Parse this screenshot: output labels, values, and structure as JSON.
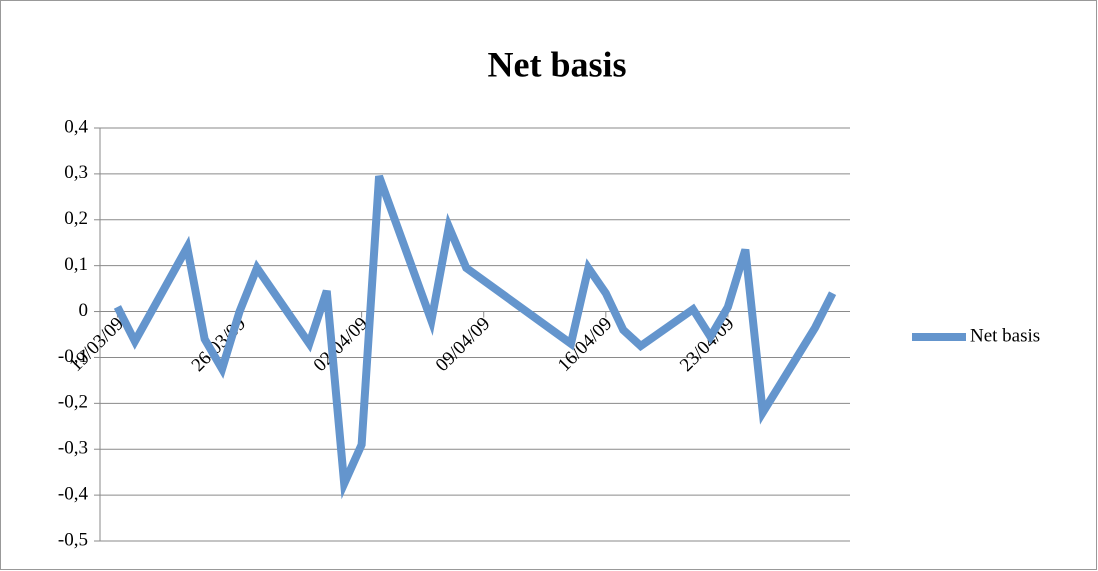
{
  "chart_data": {
    "type": "line",
    "title": "Net basis",
    "x": [
      "19/03/09",
      "20/03/09",
      "23/03/09",
      "24/03/09",
      "25/03/09",
      "26/03/09",
      "27/03/09",
      "30/03/09",
      "31/03/09",
      "01/04/09",
      "02/04/09",
      "03/04/09",
      "06/04/09",
      "07/04/09",
      "08/04/09",
      "14/04/09",
      "15/04/09",
      "16/04/09",
      "17/04/09",
      "18/04/09",
      "21/04/09",
      "22/04/09",
      "23/04/09",
      "24/04/09",
      "25/04/09",
      "28/04/09",
      "29/04/09"
    ],
    "series": [
      {
        "name": "Net basis",
        "color": "#6495cd",
        "values": [
          0.01,
          -0.065,
          0.14,
          -0.06,
          -0.125,
          0.0,
          0.095,
          -0.07,
          0.045,
          -0.375,
          -0.29,
          0.295,
          -0.02,
          0.185,
          0.095,
          -0.07,
          0.095,
          0.04,
          -0.04,
          -0.075,
          0.005,
          -0.055,
          0.01,
          0.135,
          -0.22,
          -0.035,
          0.04
        ]
      }
    ],
    "xlim": [
      "18/03/09",
      "30/04/09"
    ],
    "xticks": [
      "19/03/09",
      "26/03/09",
      "02/04/09",
      "09/04/09",
      "16/04/09",
      "23/04/09"
    ],
    "ylim": [
      -0.5,
      0.4
    ],
    "yticks": [
      {
        "value": 0.4,
        "label": "0,4"
      },
      {
        "value": 0.3,
        "label": "0,3"
      },
      {
        "value": 0.2,
        "label": "0,2"
      },
      {
        "value": 0.1,
        "label": "0,1"
      },
      0,
      {
        "value": -0.1,
        "label": "-0,1"
      },
      {
        "value": -0.2,
        "label": "-0,2"
      },
      {
        "value": -0.3,
        "label": "-0,3"
      },
      {
        "value": -0.4,
        "label": "-0,4"
      },
      {
        "value": -0.5,
        "label": "-0,5"
      }
    ],
    "grid": true,
    "legend": "right"
  }
}
